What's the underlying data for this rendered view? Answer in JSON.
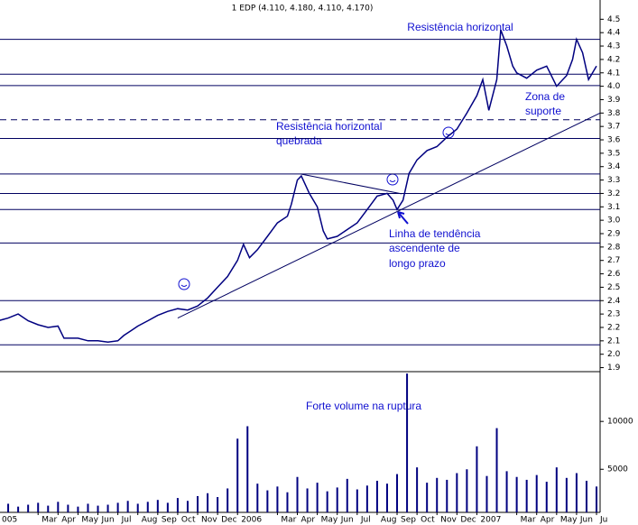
{
  "chart_data": {
    "type": "line",
    "title": "1 EDP (4.110, 4.180, 4.110, 4.170)",
    "color": "#000080",
    "x": [
      0,
      0.5,
      1,
      1.5,
      2,
      2.5,
      3,
      3.3,
      4,
      4.5,
      5,
      5.5,
      6,
      6.3,
      6.7,
      7,
      7.5,
      8,
      8.5,
      9,
      9.5,
      10,
      10.5,
      11,
      11.5,
      12,
      12.3,
      12.6,
      13,
      13.5,
      14,
      14.5,
      14.7,
      15,
      15.2,
      15.6,
      16,
      16.3,
      16.5,
      17,
      17.5,
      18,
      18.5,
      19,
      19.5,
      19.8,
      20,
      20.3,
      20.6,
      21,
      21.5,
      22,
      22.5,
      23,
      23.5,
      24,
      24.3,
      24.6,
      25,
      25.2,
      25.5,
      25.8,
      26,
      26.5,
      27,
      27.5,
      28,
      28.5,
      28.8,
      29,
      29.3,
      29.6,
      30
    ],
    "values": [
      2.25,
      2.27,
      2.3,
      2.25,
      2.22,
      2.2,
      2.21,
      2.12,
      2.12,
      2.1,
      2.1,
      2.09,
      2.1,
      2.14,
      2.18,
      2.21,
      2.25,
      2.29,
      2.32,
      2.34,
      2.33,
      2.36,
      2.42,
      2.5,
      2.58,
      2.7,
      2.82,
      2.72,
      2.78,
      2.88,
      2.98,
      3.03,
      3.12,
      3.3,
      3.33,
      3.2,
      3.1,
      2.92,
      2.86,
      2.88,
      2.93,
      2.98,
      3.08,
      3.18,
      3.2,
      3.15,
      3.08,
      3.15,
      3.35,
      3.45,
      3.52,
      3.55,
      3.62,
      3.68,
      3.8,
      3.93,
      4.05,
      3.82,
      4.05,
      4.42,
      4.3,
      4.15,
      4.1,
      4.06,
      4.12,
      4.15,
      4.0,
      4.08,
      4.2,
      4.35,
      4.25,
      4.05,
      4.15
    ],
    "xlim": [
      0.09,
      30.18
    ],
    "xticks": [
      {
        "value": 0,
        "label": "005"
      },
      {
        "value": 2,
        "label": "Mar"
      },
      {
        "value": 3,
        "label": "Apr"
      },
      {
        "value": 4,
        "label": "May"
      },
      {
        "value": 5,
        "label": "Jun"
      },
      {
        "value": 6,
        "label": "Jul"
      },
      {
        "value": 7,
        "label": "Aug"
      },
      {
        "value": 8,
        "label": "Sep"
      },
      {
        "value": 9,
        "label": "Oct"
      },
      {
        "value": 10,
        "label": "Nov"
      },
      {
        "value": 11,
        "label": "Dec"
      },
      {
        "value": 12,
        "label": "2006"
      },
      {
        "value": 14,
        "label": "Mar"
      },
      {
        "value": 15,
        "label": "Apr"
      },
      {
        "value": 16,
        "label": "May"
      },
      {
        "value": 17,
        "label": "Jun"
      },
      {
        "value": 18,
        "label": "Jul"
      },
      {
        "value": 19,
        "label": "Aug"
      },
      {
        "value": 20,
        "label": "Sep"
      },
      {
        "value": 21,
        "label": "Oct"
      },
      {
        "value": 22,
        "label": "Nov"
      },
      {
        "value": 23,
        "label": "Dec"
      },
      {
        "value": 24,
        "label": "2007"
      },
      {
        "value": 26,
        "label": "Mar"
      },
      {
        "value": 27,
        "label": "Apr"
      },
      {
        "value": 28,
        "label": "May"
      },
      {
        "value": 29,
        "label": "Jun"
      },
      {
        "value": 30,
        "label": "Ju"
      }
    ],
    "ylim": [
      1.87,
      4.61
    ],
    "yticks": [
      {
        "value": 1.9,
        "label": "1.9"
      },
      {
        "value": 2,
        "label": "2.0"
      },
      2.1,
      2.2,
      2.3,
      2.4,
      2.5,
      2.6,
      2.7,
      2.8,
      2.9,
      {
        "value": 3,
        "label": "3.0"
      },
      3.1,
      3.2,
      3.3,
      3.4,
      3.5,
      3.6,
      3.7,
      3.8,
      3.9,
      {
        "value": 4,
        "label": "4.0"
      },
      4.1,
      4.2,
      4.3,
      4.4,
      4.5
    ],
    "horizontal_lines": [
      4.35,
      4.09,
      4.005,
      3.61,
      3.345,
      3.2,
      3.08,
      2.83,
      2.4,
      2.07
    ],
    "dashed_line": 3.75,
    "trend_lines": [
      {
        "x": [
          9.0,
          30.18
        ],
        "values": [
          2.27,
          3.8
        ]
      },
      {
        "x": [
          15.16,
          20.23
        ],
        "values": [
          3.345,
          3.197
        ]
      }
    ],
    "volume": {
      "x": [
        0,
        0.5,
        1,
        1.5,
        2,
        2.5,
        3,
        3.5,
        4,
        4.5,
        5,
        5.5,
        6,
        6.5,
        7,
        7.5,
        8,
        8.5,
        9,
        9.5,
        10,
        10.5,
        11,
        11.5,
        12,
        12.5,
        13,
        13.5,
        14,
        14.5,
        15,
        15.5,
        16,
        16.5,
        17,
        17.5,
        18,
        18.5,
        19,
        19.5,
        20,
        20.5,
        21,
        21.5,
        22,
        22.5,
        23,
        23.5,
        24,
        24.5,
        25,
        25.5,
        26,
        26.5,
        27,
        27.5,
        28,
        28.5,
        29,
        29.5,
        30
      ],
      "values": [
        1200,
        1400,
        1100,
        1300,
        1500,
        1200,
        1600,
        1300,
        1100,
        1400,
        1200,
        1300,
        1500,
        1700,
        1400,
        1600,
        1800,
        1500,
        2000,
        1700,
        2200,
        2500,
        2100,
        3000,
        8200,
        9500,
        3500,
        2800,
        3200,
        2600,
        4200,
        3000,
        3600,
        2700,
        3100,
        4000,
        2900,
        3300,
        3800,
        3500,
        4500,
        15000,
        5200,
        3600,
        4100,
        3900,
        4600,
        5000,
        7400,
        4300,
        9300,
        4800,
        4200,
        3900,
        4400,
        3700,
        5200,
        4100,
        4600,
        3800,
        3200
      ],
      "ylim": [
        500,
        15200
      ],
      "yticks": [
        5000,
        10000
      ]
    },
    "annotations": {
      "resistance": "Resistência horizontal",
      "broken_resistance": [
        "Resistência horizontal",
        "quebrada"
      ],
      "support_zone": [
        "Zona de",
        "suporte"
      ],
      "trend_line": [
        "Linha de tendência",
        "ascendente de",
        "longo prazo"
      ],
      "volume_note": "Forte volume na ruptura"
    }
  }
}
